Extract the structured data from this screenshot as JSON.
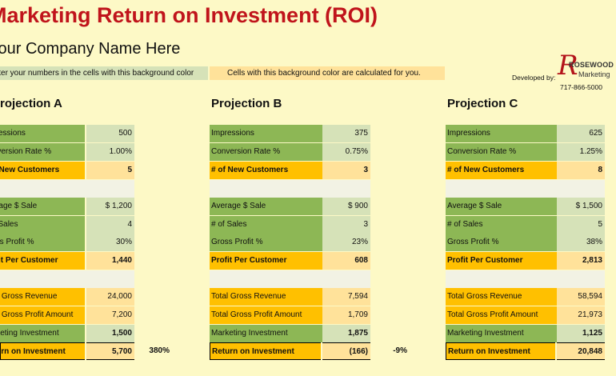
{
  "title": "Marketing Return on Investment (ROI)",
  "company": "Your Company Name Here",
  "legend": {
    "input_text": "Enter your numbers in the cells with this background color",
    "calc_text": "Cells with this background color are calculated for you."
  },
  "developer": {
    "label": "Developed by:",
    "logo_name": "ROSEWOOD",
    "logo_sub": "Marketing",
    "phone": "717-866-5000"
  },
  "colors": {
    "title": "#c0141b",
    "input_label": "#8db755",
    "input_cell": "#d6e2b8",
    "calc_label": "#ffc000",
    "calc_cell": "#ffe29a",
    "background": "#fdf9c6"
  },
  "projections": [
    {
      "title": "Projection A",
      "impressions": {
        "label": "Impressions",
        "value": "500"
      },
      "conversion_rate": {
        "label": "Conversion Rate %",
        "value": "1.00%"
      },
      "new_customers": {
        "label": "# of New Customers",
        "value": "5"
      },
      "average_sale": {
        "label": "Average $ Sale",
        "value": "$ 1,200"
      },
      "num_sales": {
        "label": "# of Sales",
        "value": "4"
      },
      "gross_profit_pct": {
        "label": "Gross Profit %",
        "value": "30%"
      },
      "profit_per_customer": {
        "label": "Profit Per Customer",
        "value": "1,440"
      },
      "total_gross_revenue": {
        "label": "Total Gross Revenue",
        "value": "24,000"
      },
      "total_gross_profit": {
        "label": "Total Gross Profit Amount",
        "value": "7,200"
      },
      "marketing_investment": {
        "label": "Marketing Investment",
        "value": "1,500"
      },
      "return_on_investment": {
        "label": "Return on Investment",
        "value": "5,700",
        "percent": "380%"
      }
    },
    {
      "title": "Projection B",
      "impressions": {
        "label": "Impressions",
        "value": "375"
      },
      "conversion_rate": {
        "label": "Conversion Rate %",
        "value": "0.75%"
      },
      "new_customers": {
        "label": "# of New Customers",
        "value": "3"
      },
      "average_sale": {
        "label": "Average $ Sale",
        "value": "$ 900"
      },
      "num_sales": {
        "label": "# of Sales",
        "value": "3"
      },
      "gross_profit_pct": {
        "label": "Gross Profit %",
        "value": "23%"
      },
      "profit_per_customer": {
        "label": "Profit Per Customer",
        "value": "608"
      },
      "total_gross_revenue": {
        "label": "Total Gross Revenue",
        "value": "7,594"
      },
      "total_gross_profit": {
        "label": "Total Gross Profit Amount",
        "value": "1,709"
      },
      "marketing_investment": {
        "label": "Marketing Investment",
        "value": "1,875"
      },
      "return_on_investment": {
        "label": "Return on Investment",
        "value": "(166)",
        "percent": "-9%"
      }
    },
    {
      "title": "Projection C",
      "impressions": {
        "label": "Impressions",
        "value": "625"
      },
      "conversion_rate": {
        "label": "Conversion Rate %",
        "value": "1.25%"
      },
      "new_customers": {
        "label": "# of New Customers",
        "value": "8"
      },
      "average_sale": {
        "label": "Average $ Sale",
        "value": "$ 1,500"
      },
      "num_sales": {
        "label": "# of Sales",
        "value": "5"
      },
      "gross_profit_pct": {
        "label": "Gross Profit %",
        "value": "38%"
      },
      "profit_per_customer": {
        "label": "Profit Per Customer",
        "value": "2,813"
      },
      "total_gross_revenue": {
        "label": "Total Gross Revenue",
        "value": "58,594"
      },
      "total_gross_profit": {
        "label": "Total Gross Profit Amount",
        "value": "21,973"
      },
      "marketing_investment": {
        "label": "Marketing Investment",
        "value": "1,125"
      },
      "return_on_investment": {
        "label": "Return on Investment",
        "value": "20,848",
        "percent": ""
      }
    }
  ]
}
